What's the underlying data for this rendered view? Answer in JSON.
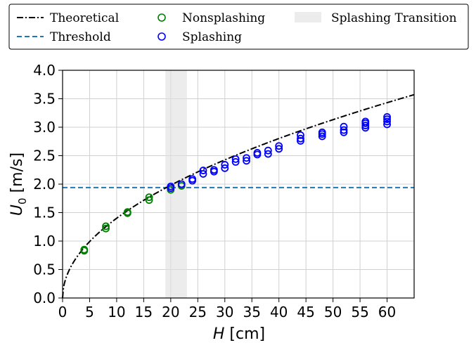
{
  "chart_data": {
    "type": "scatter",
    "xlabel_symbol": "H",
    "xlabel_unit": "[cm]",
    "ylabel_symbol": "U",
    "ylabel_subscript": "0",
    "ylabel_unit": "[m/s]",
    "xlim": [
      0,
      65
    ],
    "ylim": [
      0,
      4.0
    ],
    "xticks": [
      0,
      5,
      10,
      15,
      20,
      25,
      30,
      35,
      40,
      45,
      50,
      55,
      60
    ],
    "yticks": [
      "0.0",
      "0.5",
      "1.0",
      "1.5",
      "2.0",
      "2.5",
      "3.0",
      "3.5",
      "4.0"
    ],
    "grid": true,
    "legend_position": "top, outside plot",
    "legend": {
      "theoretical": "Theoretical",
      "threshold": "Threshold",
      "nonsplashing": "Nonsplashing",
      "splashing": "Splashing",
      "transition": "Splashing Transition"
    },
    "theoretical_curve": "U0 = sqrt(2 g H)",
    "threshold_y": 1.94,
    "transition_band": [
      19,
      23
    ],
    "series": [
      {
        "name": "Nonsplashing",
        "color": "#008000",
        "points": [
          [
            4,
            0.83
          ],
          [
            4,
            0.85
          ],
          [
            8,
            1.22
          ],
          [
            8,
            1.26
          ],
          [
            12,
            1.49
          ],
          [
            12,
            1.51
          ],
          [
            16,
            1.72
          ],
          [
            16,
            1.77
          ],
          [
            20,
            1.9
          ],
          [
            22,
            1.97
          ]
        ]
      },
      {
        "name": "Splashing",
        "color": "#0000ff",
        "points": [
          [
            20,
            1.93
          ],
          [
            20,
            1.96
          ],
          [
            22,
            2.0
          ],
          [
            24,
            2.06
          ],
          [
            24,
            2.09
          ],
          [
            26,
            2.18
          ],
          [
            26,
            2.24
          ],
          [
            28,
            2.22
          ],
          [
            28,
            2.25
          ],
          [
            30,
            2.28
          ],
          [
            30,
            2.34
          ],
          [
            32,
            2.39
          ],
          [
            32,
            2.44
          ],
          [
            34,
            2.41
          ],
          [
            34,
            2.46
          ],
          [
            36,
            2.52
          ],
          [
            36,
            2.55
          ],
          [
            38,
            2.53
          ],
          [
            38,
            2.59
          ],
          [
            40,
            2.62
          ],
          [
            40,
            2.67
          ],
          [
            44,
            2.76
          ],
          [
            44,
            2.8
          ],
          [
            44,
            2.86
          ],
          [
            48,
            2.84
          ],
          [
            48,
            2.88
          ],
          [
            48,
            2.91
          ],
          [
            52,
            2.91
          ],
          [
            52,
            2.95
          ],
          [
            52,
            3.01
          ],
          [
            56,
            2.99
          ],
          [
            56,
            3.03
          ],
          [
            56,
            3.07
          ],
          [
            56,
            3.1
          ],
          [
            60,
            3.05
          ],
          [
            60,
            3.1
          ],
          [
            60,
            3.14
          ],
          [
            60,
            3.18
          ]
        ]
      }
    ],
    "colors": {
      "theoretical": "#000000",
      "threshold": "#1f77b4",
      "transition": "#e0e0e0",
      "grid": "#d0d0d0"
    }
  }
}
